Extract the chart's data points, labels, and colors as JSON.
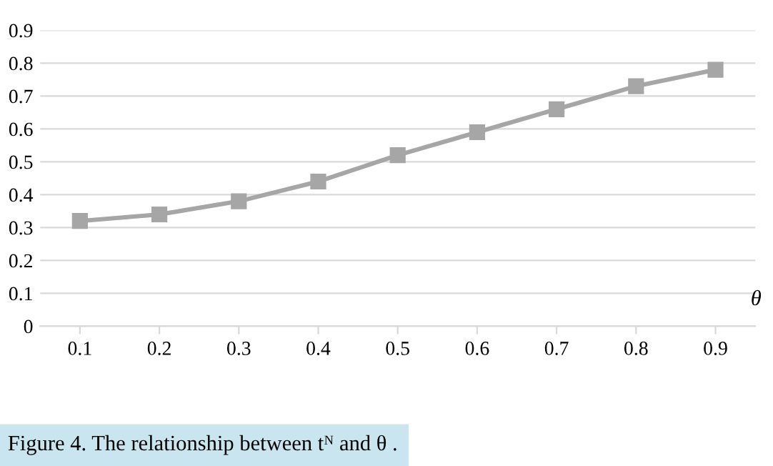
{
  "chart_data": {
    "type": "line",
    "xlabel": "θ",
    "categories": [
      "0.1",
      "0.2",
      "0.3",
      "0.4",
      "0.5",
      "0.6",
      "0.7",
      "0.8",
      "0.9"
    ],
    "series": [
      {
        "color": "#a6a6a6",
        "values": [
          0.32,
          0.34,
          0.38,
          0.44,
          0.52,
          0.59,
          0.66,
          0.73,
          0.78
        ]
      }
    ],
    "ylim": [
      0,
      0.9
    ],
    "yticks": [
      0,
      0.1,
      0.2,
      0.3,
      0.4,
      0.5,
      0.6,
      0.7,
      0.8,
      0.9
    ],
    "grid": "y",
    "marker": "square",
    "line_style": "solid",
    "annotations": [
      "Figure 4. The relationship between tᴺ and θ ."
    ]
  }
}
